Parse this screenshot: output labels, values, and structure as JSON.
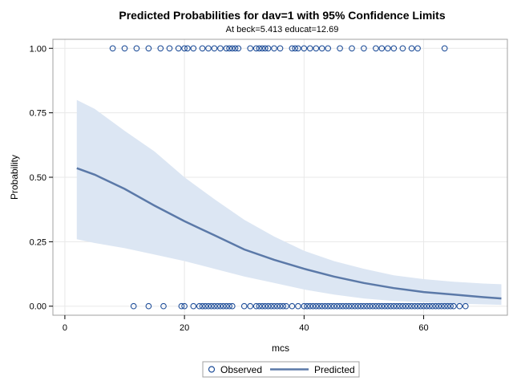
{
  "chart_data": {
    "type": "line",
    "title": "Predicted Probabilities for dav=1 with 95% Confidence Limits",
    "subtitle": "At beck=5.413 educat=12.69",
    "xlabel": "mcs",
    "ylabel": "Probability",
    "xlim": [
      -2,
      74
    ],
    "ylim": [
      -0.035,
      1.035
    ],
    "xticks": [
      0,
      20,
      40,
      60
    ],
    "yticks": [
      0.0,
      0.25,
      0.5,
      0.75,
      1.0
    ],
    "ytick_labels": [
      "0.00",
      "0.25",
      "0.50",
      "0.75",
      "1.00"
    ],
    "grid": true,
    "legend_position": "bottom",
    "colors": {
      "predicted_line": "#5b79a8",
      "confidence_band": "#dce6f3",
      "observed_marker": "#1f4e99",
      "grid": "#e8e8e8",
      "frame": "#a0a0a0"
    },
    "series": [
      {
        "name": "Observed",
        "kind": "scatter",
        "groups": [
          {
            "y": 1,
            "x": [
              8,
              10,
              12,
              14,
              16,
              17.5,
              19,
              20,
              20.5,
              21.5,
              23,
              24,
              25,
              26,
              27,
              27.5,
              28,
              28.5,
              29,
              31,
              32,
              32.5,
              33,
              33.5,
              34,
              35,
              36,
              38,
              38.5,
              39,
              40,
              41,
              42,
              43,
              44,
              46,
              48,
              50,
              52,
              53,
              54,
              55,
              56.5,
              58,
              59,
              63.5
            ]
          },
          {
            "y": 0,
            "x": [
              11.5,
              14,
              16.5,
              19.5,
              20,
              21.5,
              22.5,
              23,
              23.5,
              24,
              24.5,
              25,
              25.5,
              26,
              26.5,
              27,
              27.5,
              28,
              30,
              31,
              32,
              32.5,
              33,
              33.5,
              34,
              34.5,
              35,
              35.5,
              36,
              36.5,
              37,
              38,
              39,
              40,
              40.5,
              41,
              41.5,
              42,
              42.5,
              43,
              43.5,
              44,
              44.5,
              45,
              45.5,
              46,
              46.5,
              47,
              47.5,
              48,
              48.5,
              49,
              49.5,
              50,
              50.5,
              51,
              51.5,
              52,
              52.5,
              53,
              53.5,
              54,
              54.5,
              55,
              55.5,
              56,
              56.5,
              57,
              57.5,
              58,
              58.5,
              59,
              59.5,
              60,
              60.5,
              61,
              61.5,
              62,
              62.5,
              63,
              63.5,
              64,
              64.5,
              65,
              66,
              67
            ]
          }
        ]
      },
      {
        "name": "Predicted",
        "kind": "line",
        "x": [
          2,
          5,
          10,
          15,
          20,
          25,
          30,
          35,
          40,
          45,
          50,
          55,
          60,
          65,
          70,
          73
        ],
        "y": [
          0.535,
          0.51,
          0.455,
          0.39,
          0.33,
          0.275,
          0.22,
          0.18,
          0.145,
          0.115,
          0.09,
          0.07,
          0.055,
          0.045,
          0.035,
          0.03
        ]
      },
      {
        "name": "95% Confidence Limits",
        "kind": "band",
        "x": [
          2,
          5,
          10,
          15,
          20,
          25,
          30,
          35,
          40,
          45,
          50,
          55,
          60,
          65,
          70,
          73
        ],
        "lower": [
          0.26,
          0.245,
          0.225,
          0.2,
          0.175,
          0.145,
          0.115,
          0.09,
          0.065,
          0.045,
          0.03,
          0.02,
          0.015,
          0.01,
          0.007,
          0.005
        ],
        "upper": [
          0.8,
          0.765,
          0.68,
          0.6,
          0.5,
          0.415,
          0.335,
          0.27,
          0.215,
          0.175,
          0.145,
          0.12,
          0.105,
          0.095,
          0.088,
          0.085
        ]
      }
    ]
  }
}
